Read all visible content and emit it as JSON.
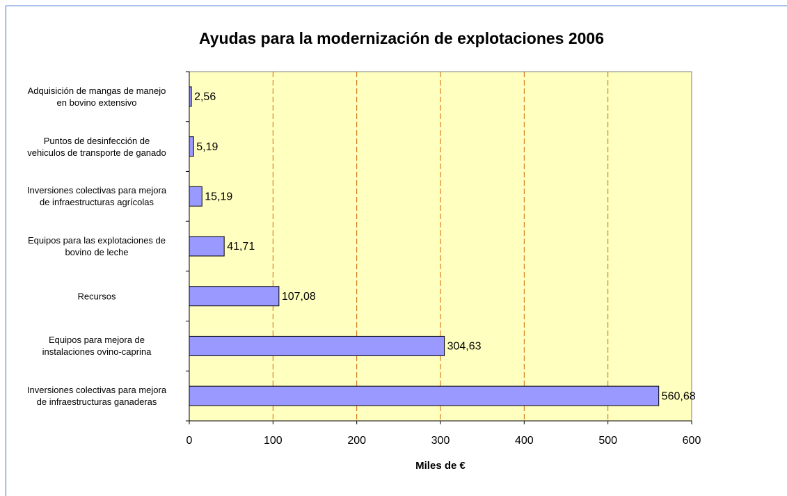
{
  "chart_data": {
    "type": "barh",
    "title": "Ayudas para la modernización de explotaciones 2006",
    "xlabel": "Miles de €",
    "categories": [
      "Adquisición de mangas de manejo\nen bovino extensivo",
      "Puntos de desinfección de\nvehiculos de transporte de ganado",
      "Inversiones colectivas para mejora\nde infraestructuras agrícolas",
      "Equipos para las explotaciones de\nbovino de leche",
      "Recursos",
      "Equipos para mejora de\ninstalaciones ovino-caprina",
      "Inversiones colectivas para mejora\nde infraestructuras ganaderas"
    ],
    "values": [
      2.56,
      5.19,
      15.19,
      41.71,
      107.08,
      304.63,
      560.68
    ],
    "value_labels": [
      "2,56",
      "5,19",
      "15,19",
      "41,71",
      "107,08",
      "304,63",
      "560,68"
    ],
    "color": "#9999ff",
    "xlim": [
      0,
      600
    ],
    "xticks": [
      0,
      100,
      200,
      300,
      400,
      500,
      600
    ],
    "grid": true
  }
}
